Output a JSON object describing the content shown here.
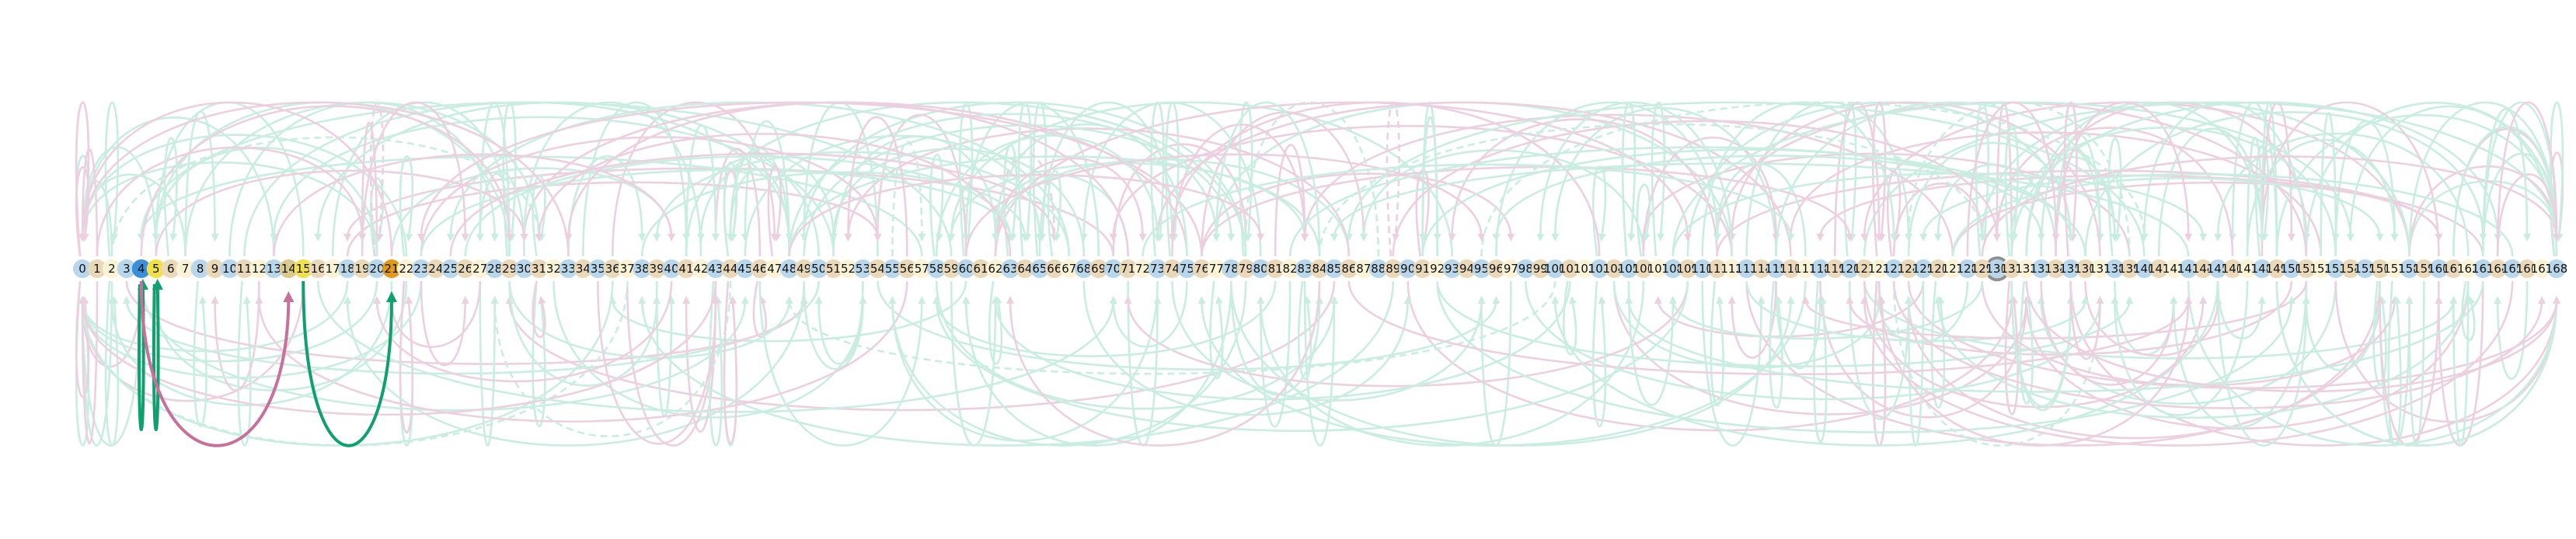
{
  "diagram": {
    "node_count": 169,
    "highlighted_nodes": [
      {
        "index": 4,
        "color": "#3b8fd9"
      },
      {
        "index": 5,
        "color": "#f2e04a"
      },
      {
        "index": 14,
        "color": "#d9c98a"
      },
      {
        "index": 15,
        "color": "#f2e04a"
      },
      {
        "index": 21,
        "color": "#e09a1a"
      }
    ],
    "node_palette": [
      "#b9d7ea",
      "#ead9b8",
      "#fbf3d6"
    ],
    "emphasized_edges": [
      {
        "from": 4,
        "to": 4,
        "side": "below",
        "color": "#10a070",
        "depth": 0.95
      },
      {
        "from": 5,
        "to": 5,
        "side": "below",
        "color": "#10a070",
        "depth": 0.95
      },
      {
        "from": 4,
        "to": 14,
        "side": "below",
        "color": "#c8709c",
        "depth": 0.88
      },
      {
        "from": 15,
        "to": 21,
        "side": "below",
        "color": "#10a070",
        "depth": 0.88
      }
    ],
    "special_node": {
      "index": 130,
      "marker": "gray-loop"
    },
    "faint_edge_colors": {
      "green": "#c9ede0",
      "pink": "#ecd0e0",
      "gray": "#d8d8d8"
    }
  }
}
